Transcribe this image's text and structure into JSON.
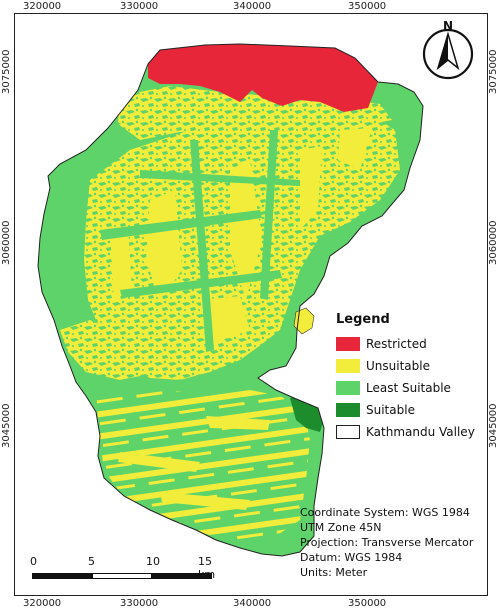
{
  "axes": {
    "top_x_labels": [
      "320000",
      "330000",
      "340000",
      "350000"
    ],
    "bottom_x_labels": [
      "320000",
      "330000",
      "340000",
      "350000"
    ],
    "left_y_labels": [
      "3075000",
      "3060000",
      "3045000"
    ],
    "right_y_labels": [
      "3075000",
      "3060000",
      "3045000"
    ]
  },
  "north_arrow": {
    "letter": "N",
    "icon": "north-arrow-icon"
  },
  "legend": {
    "title": "Legend",
    "items": [
      {
        "label": "Restricted",
        "color": "#e8263a",
        "icon": "restricted-swatch"
      },
      {
        "label": "Unsuitable",
        "color": "#f2ec3a",
        "icon": "unsuitable-swatch"
      },
      {
        "label": "Least Suitable",
        "color": "#5ed36a",
        "icon": "least-suitable-swatch"
      },
      {
        "label": "Suitable",
        "color": "#1c8c2c",
        "icon": "suitable-swatch"
      },
      {
        "label": "Kathmandu Valley",
        "color": "#ffffff",
        "icon": "boundary-swatch"
      }
    ]
  },
  "info": {
    "coordinate_system": "Coordinate System: WGS 1984",
    "zone": "UTM Zone 45N",
    "projection": "Projection: Transverse Mercator",
    "datum": "Datum: WGS 1984",
    "units": "Units: Meter"
  },
  "scale_bar": {
    "labels": [
      "0",
      "5",
      "10",
      "15 km"
    ]
  },
  "colors": {
    "restricted": "#e8263a",
    "unsuitable": "#f2ec3a",
    "least_suitable": "#5ed36a",
    "suitable": "#1c8c2c"
  }
}
